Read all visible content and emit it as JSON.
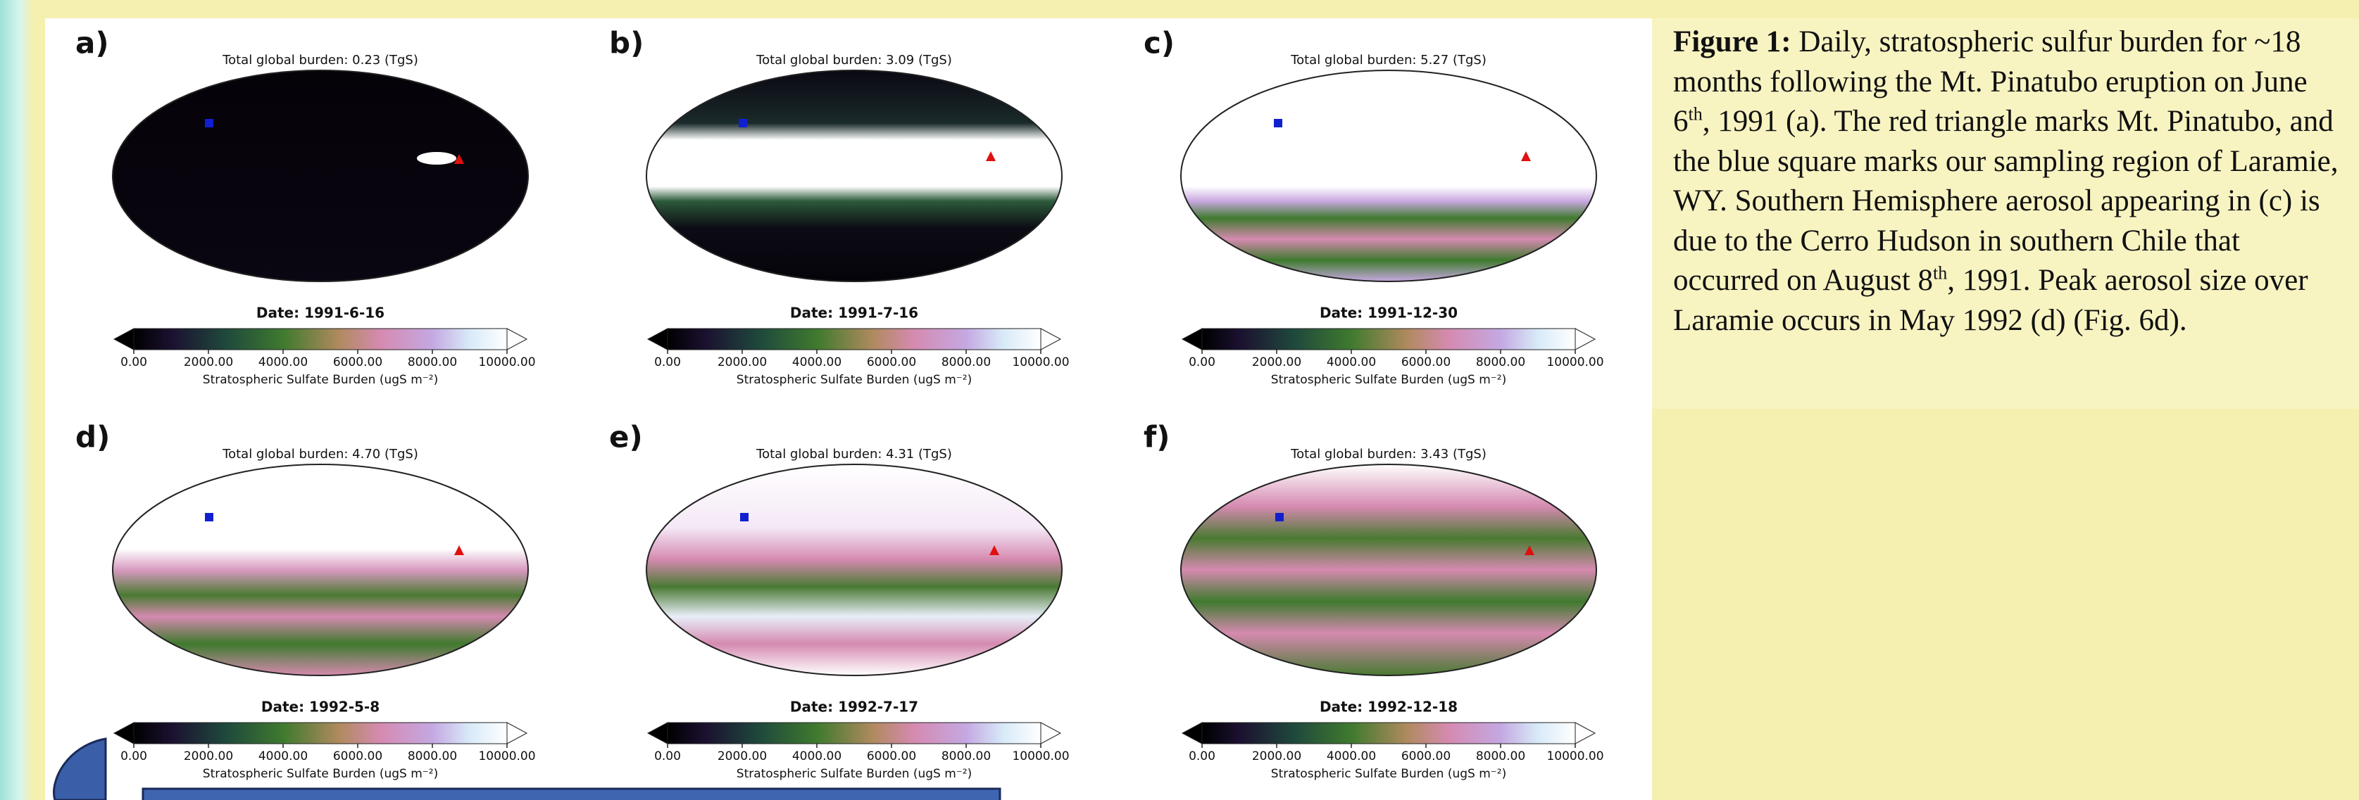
{
  "panels": [
    {
      "label": "a)",
      "title": "Total global burden: 0.23 (TgS)",
      "date": "Date: 1991-6-16"
    },
    {
      "label": "b)",
      "title": "Total global burden: 3.09 (TgS)",
      "date": "Date: 1991-7-16"
    },
    {
      "label": "c)",
      "title": "Total global burden: 5.27 (TgS)",
      "date": "Date: 1991-12-30"
    },
    {
      "label": "d)",
      "title": "Total global burden: 4.70 (TgS)",
      "date": "Date: 1992-5-8"
    },
    {
      "label": "e)",
      "title": "Total global burden: 4.31 (TgS)",
      "date": "Date: 1992-7-17"
    },
    {
      "label": "f)",
      "title": "Total global burden: 3.43 (TgS)",
      "date": "Date: 1992-12-18"
    }
  ],
  "colorbar": {
    "ticks": [
      "0.00",
      "2000.00",
      "4000.00",
      "6000.00",
      "8000.00",
      "10000.00"
    ],
    "label": "Stratospheric Sulfate Burden (ugS m⁻²)"
  },
  "caption": {
    "label": "Figure 1:",
    "text1": " Daily, stratospheric sulfur burden for ~18 months following the Mt. Pinatubo eruption on June 6",
    "sup1": "th",
    "text2": ", 1991 (a). The red triangle marks Mt. Pinatubo, and the blue square marks our sampling region of Laramie, WY. Southern Hemisphere aerosol appearing in (c) is due to the Cerro Hudson in southern Chile that occurred on August 8",
    "sup2": "th",
    "text3": ", 1991. Peak aerosol size over Laramie occurs in May 1992 (d) (Fig. 6d)."
  }
}
